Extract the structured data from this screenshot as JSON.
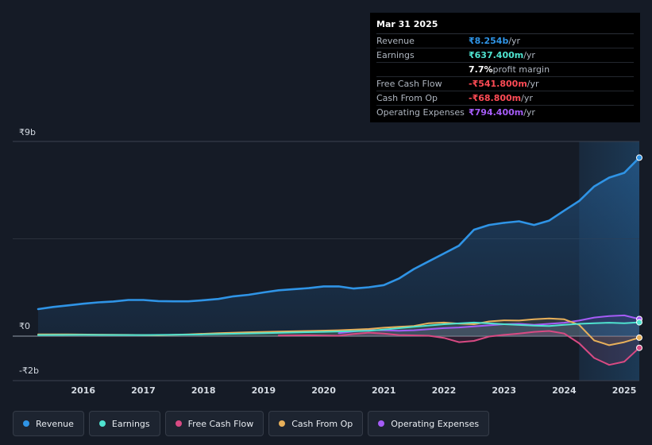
{
  "tooltip": {
    "date": "Mar 31 2025",
    "rows": [
      {
        "label": "Revenue",
        "value": "₹8.254b",
        "unit": "/yr",
        "color": "#2f94e6"
      },
      {
        "label": "Earnings",
        "value": "₹637.400m",
        "unit": "/yr",
        "color": "#4fe3d0"
      },
      {
        "label": "",
        "value": "7.7%",
        "unit": "profit margin",
        "color": "#ffffff"
      },
      {
        "label": "Free Cash Flow",
        "value": "-₹541.800m",
        "unit": "/yr",
        "color": "#ff4b55"
      },
      {
        "label": "Cash From Op",
        "value": "-₹68.800m",
        "unit": "/yr",
        "color": "#ff4b55"
      },
      {
        "label": "Operating Expenses",
        "value": "₹794.400m",
        "unit": "/yr",
        "color": "#a55cf7"
      }
    ]
  },
  "legend": [
    {
      "label": "Revenue",
      "color": "#2f94e6"
    },
    {
      "label": "Earnings",
      "color": "#4fe3d0"
    },
    {
      "label": "Free Cash Flow",
      "color": "#d84a83"
    },
    {
      "label": "Cash From Op",
      "color": "#e8b05a"
    },
    {
      "label": "Operating Expenses",
      "color": "#a55cf7"
    }
  ],
  "chart_data": {
    "type": "line",
    "ylim": [
      -2,
      9
    ],
    "ytick_labels": [
      {
        "value": 9,
        "label": "₹9b"
      },
      {
        "value": 0,
        "label": "₹0"
      },
      {
        "value": -2,
        "label": "-₹2b"
      }
    ],
    "xticks": [
      2016,
      2017,
      2018,
      2019,
      2020,
      2021,
      2022,
      2023,
      2024,
      2025
    ],
    "xlim": [
      2015.21,
      2025.25
    ],
    "highlight_start": 2024.25,
    "series": [
      {
        "name": "Revenue",
        "color": "#2f94e6",
        "area": true,
        "points": [
          [
            2015.25,
            1.25
          ],
          [
            2015.5,
            1.35
          ],
          [
            2015.75,
            1.42
          ],
          [
            2016.0,
            1.5
          ],
          [
            2016.25,
            1.56
          ],
          [
            2016.5,
            1.6
          ],
          [
            2016.75,
            1.67
          ],
          [
            2017.0,
            1.67
          ],
          [
            2017.25,
            1.62
          ],
          [
            2017.5,
            1.61
          ],
          [
            2017.75,
            1.61
          ],
          [
            2018.0,
            1.66
          ],
          [
            2018.25,
            1.72
          ],
          [
            2018.5,
            1.84
          ],
          [
            2018.75,
            1.91
          ],
          [
            2019.0,
            2.02
          ],
          [
            2019.25,
            2.12
          ],
          [
            2019.5,
            2.17
          ],
          [
            2019.75,
            2.22
          ],
          [
            2020.0,
            2.3
          ],
          [
            2020.25,
            2.3
          ],
          [
            2020.5,
            2.2
          ],
          [
            2020.75,
            2.26
          ],
          [
            2021.0,
            2.36
          ],
          [
            2021.25,
            2.66
          ],
          [
            2021.5,
            3.1
          ],
          [
            2021.75,
            3.46
          ],
          [
            2022.0,
            3.82
          ],
          [
            2022.25,
            4.18
          ],
          [
            2022.5,
            4.92
          ],
          [
            2022.75,
            5.14
          ],
          [
            2023.0,
            5.24
          ],
          [
            2023.25,
            5.31
          ],
          [
            2023.5,
            5.14
          ],
          [
            2023.75,
            5.34
          ],
          [
            2024.0,
            5.8
          ],
          [
            2024.25,
            6.25
          ],
          [
            2024.5,
            6.92
          ],
          [
            2024.75,
            7.33
          ],
          [
            2025.0,
            7.55
          ],
          [
            2025.25,
            8.25
          ]
        ]
      },
      {
        "name": "Operating Expenses",
        "color": "#a55cf7",
        "area": false,
        "points": [
          [
            2020.25,
            0.14
          ],
          [
            2020.5,
            0.22
          ],
          [
            2020.75,
            0.28
          ],
          [
            2021.0,
            0.27
          ],
          [
            2021.25,
            0.25
          ],
          [
            2021.5,
            0.27
          ],
          [
            2021.75,
            0.32
          ],
          [
            2022.0,
            0.37
          ],
          [
            2022.25,
            0.4
          ],
          [
            2022.5,
            0.45
          ],
          [
            2022.75,
            0.5
          ],
          [
            2023.0,
            0.55
          ],
          [
            2023.25,
            0.57
          ],
          [
            2023.5,
            0.52
          ],
          [
            2023.75,
            0.57
          ],
          [
            2024.0,
            0.62
          ],
          [
            2024.25,
            0.72
          ],
          [
            2024.5,
            0.86
          ],
          [
            2024.75,
            0.93
          ],
          [
            2025.0,
            0.96
          ],
          [
            2025.25,
            0.79
          ]
        ]
      },
      {
        "name": "Cash From Op",
        "color": "#e8b05a",
        "area": false,
        "points": [
          [
            2015.25,
            0.08
          ],
          [
            2015.75,
            0.08
          ],
          [
            2016.25,
            0.07
          ],
          [
            2016.75,
            0.06
          ],
          [
            2017.0,
            0.05
          ],
          [
            2017.25,
            0.04
          ],
          [
            2017.75,
            0.08
          ],
          [
            2018.25,
            0.14
          ],
          [
            2018.75,
            0.18
          ],
          [
            2019.25,
            0.21
          ],
          [
            2019.75,
            0.24
          ],
          [
            2020.25,
            0.27
          ],
          [
            2020.75,
            0.33
          ],
          [
            2021.0,
            0.39
          ],
          [
            2021.5,
            0.47
          ],
          [
            2021.75,
            0.6
          ],
          [
            2022.0,
            0.63
          ],
          [
            2022.25,
            0.58
          ],
          [
            2022.5,
            0.55
          ],
          [
            2022.75,
            0.68
          ],
          [
            2023.0,
            0.73
          ],
          [
            2023.25,
            0.72
          ],
          [
            2023.5,
            0.78
          ],
          [
            2023.75,
            0.82
          ],
          [
            2024.0,
            0.78
          ],
          [
            2024.25,
            0.52
          ],
          [
            2024.5,
            -0.2
          ],
          [
            2024.75,
            -0.42
          ],
          [
            2025.0,
            -0.28
          ],
          [
            2025.25,
            -0.07
          ]
        ]
      },
      {
        "name": "Earnings",
        "color": "#4fe3d0",
        "area": false,
        "points": [
          [
            2015.25,
            0.05
          ],
          [
            2016.0,
            0.06
          ],
          [
            2017.0,
            0.05
          ],
          [
            2018.0,
            0.08
          ],
          [
            2019.0,
            0.14
          ],
          [
            2020.0,
            0.2
          ],
          [
            2020.75,
            0.25
          ],
          [
            2021.0,
            0.3
          ],
          [
            2021.5,
            0.43
          ],
          [
            2022.0,
            0.55
          ],
          [
            2022.5,
            0.63
          ],
          [
            2022.75,
            0.59
          ],
          [
            2023.0,
            0.55
          ],
          [
            2023.5,
            0.49
          ],
          [
            2023.75,
            0.47
          ],
          [
            2024.0,
            0.52
          ],
          [
            2024.25,
            0.57
          ],
          [
            2024.5,
            0.6
          ],
          [
            2024.75,
            0.62
          ],
          [
            2025.0,
            0.6
          ],
          [
            2025.25,
            0.64
          ]
        ]
      },
      {
        "name": "Free Cash Flow",
        "color": "#d84a83",
        "area": false,
        "points": [
          [
            2019.25,
            0.03
          ],
          [
            2019.75,
            0.04
          ],
          [
            2020.25,
            0.02
          ],
          [
            2020.5,
            0.1
          ],
          [
            2020.75,
            0.16
          ],
          [
            2021.0,
            0.12
          ],
          [
            2021.25,
            0.05
          ],
          [
            2021.75,
            0.02
          ],
          [
            2022.0,
            -0.08
          ],
          [
            2022.25,
            -0.28
          ],
          [
            2022.5,
            -0.22
          ],
          [
            2022.75,
            -0.02
          ],
          [
            2023.0,
            0.06
          ],
          [
            2023.25,
            0.12
          ],
          [
            2023.5,
            0.2
          ],
          [
            2023.75,
            0.24
          ],
          [
            2024.0,
            0.12
          ],
          [
            2024.25,
            -0.33
          ],
          [
            2024.5,
            -1.01
          ],
          [
            2024.75,
            -1.33
          ],
          [
            2025.0,
            -1.18
          ],
          [
            2025.25,
            -0.54
          ]
        ]
      }
    ]
  }
}
